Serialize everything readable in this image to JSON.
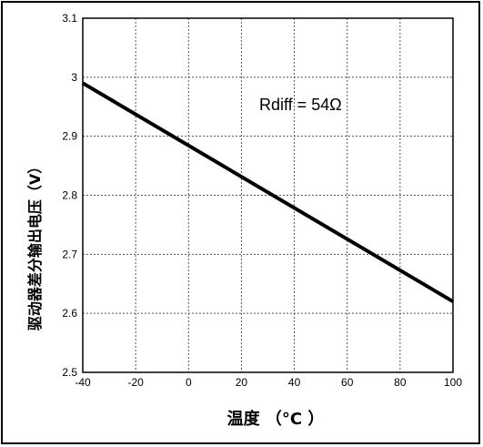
{
  "chart_data": {
    "type": "line",
    "title": "",
    "xlabel": "温度 （°C ）",
    "ylabel": "驱动器差分输出电压（V）",
    "xlim": [
      -40,
      100
    ],
    "ylim": [
      2.5,
      3.1
    ],
    "x_ticks": [
      "-40",
      "-20",
      "0",
      "20",
      "40",
      "60",
      "80",
      "100"
    ],
    "y_ticks": [
      "2.5",
      "2.6",
      "2.7",
      "2.8",
      "2.9",
      "3",
      "3.1"
    ],
    "grid": true,
    "annotation": "Rdiff = 54Ω",
    "series": [
      {
        "x": [
          -40,
          100
        ],
        "y": [
          2.99,
          2.62
        ]
      }
    ]
  }
}
